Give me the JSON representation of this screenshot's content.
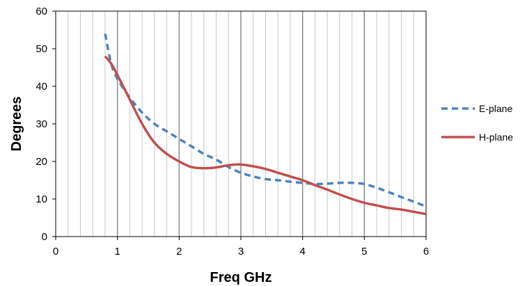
{
  "chart_data": {
    "type": "line",
    "xlabel": "Freq GHz",
    "ylabel": "Degrees",
    "xlim": [
      0,
      6
    ],
    "ylim": [
      0,
      60
    ],
    "x_ticks": [
      0,
      1,
      2,
      3,
      4,
      5,
      6
    ],
    "y_ticks": [
      0,
      10,
      20,
      30,
      40,
      50,
      60
    ],
    "minor_x_step": 0.2,
    "grid": "vertical major and minor lines",
    "legend_position": "right",
    "series": [
      {
        "name": "E-plane",
        "color": "#4f81bd",
        "dash": "dashed",
        "points": [
          [
            0.8,
            54
          ],
          [
            0.9,
            46
          ],
          [
            1.0,
            42
          ],
          [
            1.2,
            37
          ],
          [
            1.4,
            33
          ],
          [
            1.6,
            30
          ],
          [
            1.8,
            28
          ],
          [
            2.0,
            26
          ],
          [
            2.2,
            24
          ],
          [
            2.4,
            22
          ],
          [
            2.6,
            20.5
          ],
          [
            2.8,
            18.5
          ],
          [
            3.0,
            17
          ],
          [
            3.2,
            16
          ],
          [
            3.4,
            15.3
          ],
          [
            3.6,
            15
          ],
          [
            3.8,
            14.6
          ],
          [
            4.0,
            14.3
          ],
          [
            4.2,
            14
          ],
          [
            4.4,
            14.1
          ],
          [
            4.6,
            14.3
          ],
          [
            4.8,
            14.3
          ],
          [
            5.0,
            14
          ],
          [
            5.2,
            13
          ],
          [
            5.4,
            11.8
          ],
          [
            5.6,
            10.5
          ],
          [
            5.8,
            9.3
          ],
          [
            6.0,
            8
          ]
        ]
      },
      {
        "name": "H-plane",
        "color": "#c0504d",
        "dash": "solid",
        "points": [
          [
            0.8,
            48
          ],
          [
            0.9,
            46
          ],
          [
            1.0,
            43
          ],
          [
            1.2,
            36.5
          ],
          [
            1.4,
            30
          ],
          [
            1.6,
            25
          ],
          [
            1.8,
            22
          ],
          [
            2.0,
            20
          ],
          [
            2.2,
            18.5
          ],
          [
            2.4,
            18.2
          ],
          [
            2.6,
            18.4
          ],
          [
            2.8,
            19
          ],
          [
            3.0,
            19.2
          ],
          [
            3.2,
            18.7
          ],
          [
            3.4,
            18
          ],
          [
            3.6,
            17
          ],
          [
            3.8,
            16
          ],
          [
            4.0,
            15
          ],
          [
            4.2,
            13.7
          ],
          [
            4.4,
            12.5
          ],
          [
            4.6,
            11.2
          ],
          [
            4.8,
            10
          ],
          [
            5.0,
            9
          ],
          [
            5.2,
            8.3
          ],
          [
            5.4,
            7.6
          ],
          [
            5.6,
            7.2
          ],
          [
            5.8,
            6.6
          ],
          [
            6.0,
            6
          ]
        ]
      }
    ]
  }
}
